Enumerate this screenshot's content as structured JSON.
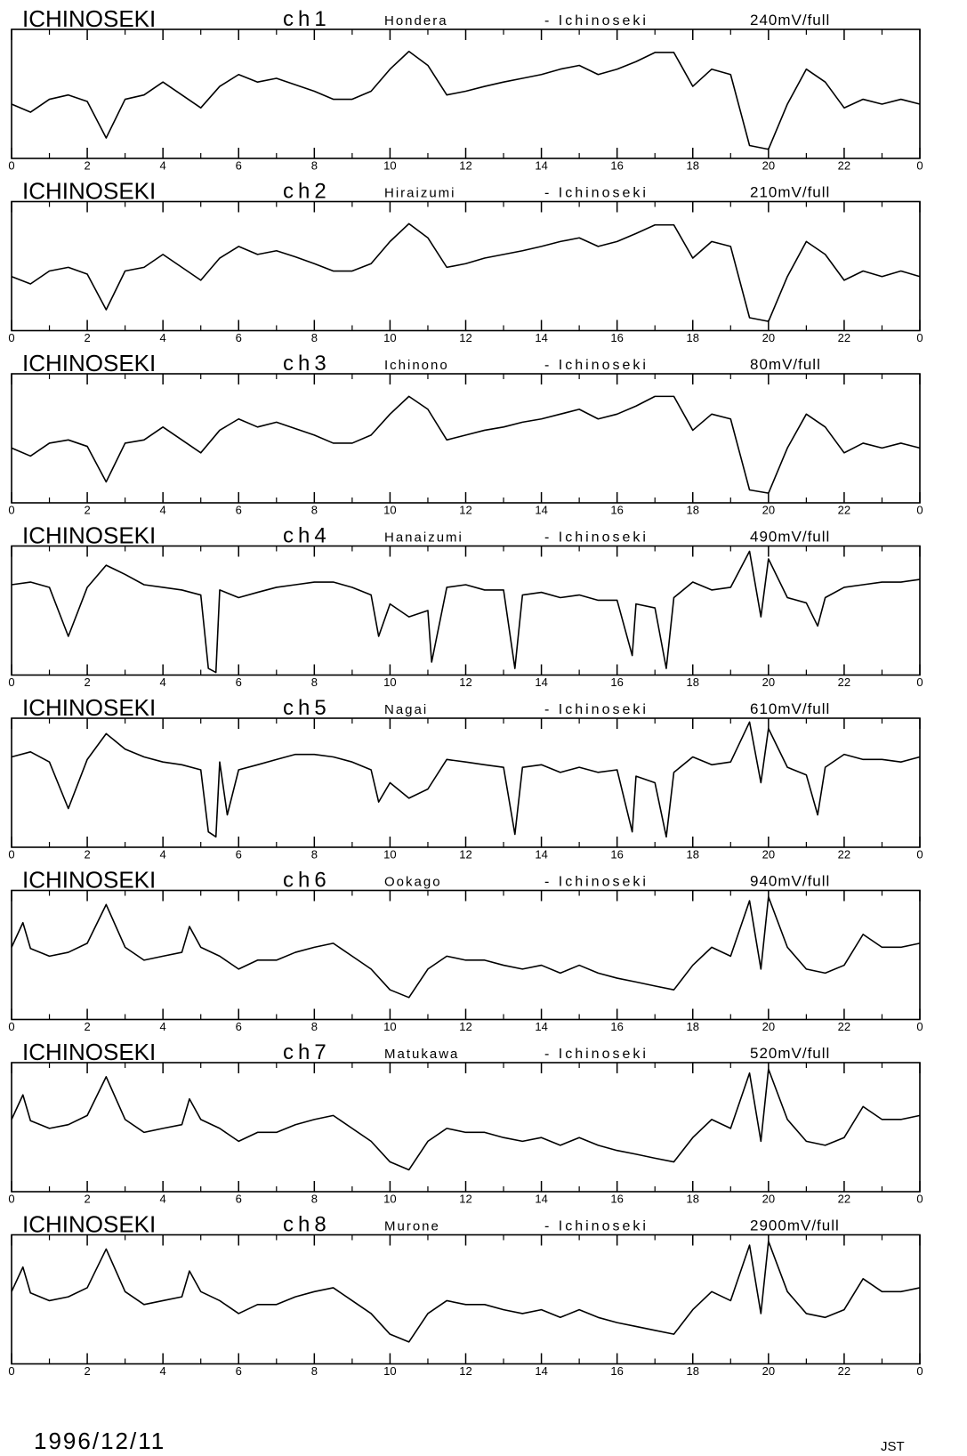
{
  "chart_data": [
    {
      "type": "line",
      "station": "ICHINOSEKI",
      "channel": "ch1",
      "site": "Hondera",
      "reference": "- Ichinoseki",
      "scale": "240mV/full",
      "color": "#000000",
      "xlim": [
        0,
        24
      ],
      "xticks": [
        0,
        2,
        4,
        6,
        8,
        10,
        12,
        14,
        16,
        18,
        20,
        22,
        {
          "value": 24,
          "label": "0"
        }
      ],
      "xminorticks": [
        1,
        3,
        5,
        7,
        9,
        11,
        13,
        15,
        17,
        19,
        21,
        23
      ],
      "ylim": [
        0,
        240
      ],
      "x": [
        0,
        0.5,
        1,
        1.5,
        2,
        2.5,
        3,
        3.5,
        4,
        4.5,
        5,
        5.5,
        6,
        6.5,
        7,
        7.5,
        8,
        8.5,
        9,
        9.5,
        10,
        10.5,
        11,
        11.5,
        12,
        12.5,
        13,
        13.5,
        14,
        14.5,
        15,
        15.5,
        16,
        16.5,
        17,
        17.5,
        18,
        18.5,
        19,
        19.5,
        20,
        20.5,
        21,
        21.5,
        22,
        22.5,
        23,
        23.5,
        24
      ],
      "values": [
        101,
        86,
        110,
        118,
        106,
        38,
        110,
        118,
        142,
        118,
        94,
        134,
        156,
        142,
        149,
        137,
        125,
        110,
        110,
        125,
        166,
        199,
        173,
        118,
        125,
        134,
        142,
        149,
        156,
        166,
        173,
        156,
        166,
        180,
        197,
        197,
        134,
        166,
        156,
        24,
        17,
        101,
        166,
        142,
        94,
        110,
        101,
        110,
        101
      ]
    },
    {
      "type": "line",
      "station": "ICHINOSEKI",
      "channel": "ch2",
      "site": "Hiraizumi",
      "reference": "- Ichinoseki",
      "scale": "210mV/full",
      "color": "#000000",
      "xlim": [
        0,
        24
      ],
      "xticks": [
        0,
        2,
        4,
        6,
        8,
        10,
        12,
        14,
        16,
        18,
        20,
        22,
        {
          "value": 24,
          "label": "0"
        }
      ],
      "xminorticks": [
        1,
        3,
        5,
        7,
        9,
        11,
        13,
        15,
        17,
        19,
        21,
        23
      ],
      "ylim": [
        0,
        210
      ],
      "x": [
        0,
        0.5,
        1,
        1.5,
        2,
        2.5,
        3,
        3.5,
        4,
        4.5,
        5,
        5.5,
        6,
        6.5,
        7,
        7.5,
        8,
        8.5,
        9,
        9.5,
        10,
        10.5,
        11,
        11.5,
        12,
        12.5,
        13,
        13.5,
        14,
        14.5,
        15,
        15.5,
        16,
        16.5,
        17,
        17.5,
        18,
        18.5,
        19,
        19.5,
        20,
        20.5,
        21,
        21.5,
        22,
        22.5,
        23,
        23.5,
        24
      ],
      "values": [
        88,
        76,
        97,
        103,
        92,
        34,
        97,
        103,
        124,
        103,
        82,
        118,
        137,
        124,
        130,
        120,
        109,
        97,
        97,
        109,
        145,
        174,
        151,
        103,
        109,
        118,
        124,
        130,
        137,
        145,
        151,
        137,
        145,
        158,
        172,
        172,
        118,
        145,
        137,
        21,
        15,
        88,
        145,
        124,
        82,
        97,
        88,
        97,
        88
      ]
    },
    {
      "type": "line",
      "station": "ICHINOSEKI",
      "channel": "ch3",
      "site": "Ichinono",
      "reference": "- Ichinoseki",
      "scale": "80mV/full",
      "color": "#000000",
      "xlim": [
        0,
        24
      ],
      "xticks": [
        0,
        2,
        4,
        6,
        8,
        10,
        12,
        14,
        16,
        18,
        20,
        22,
        {
          "value": 24,
          "label": "0"
        }
      ],
      "xminorticks": [
        1,
        3,
        5,
        7,
        9,
        11,
        13,
        15,
        17,
        19,
        21,
        23
      ],
      "ylim": [
        0,
        80
      ],
      "x": [
        0,
        0.5,
        1,
        1.5,
        2,
        2.5,
        3,
        3.5,
        4,
        4.5,
        5,
        5.5,
        6,
        6.5,
        7,
        7.5,
        8,
        8.5,
        9,
        9.5,
        10,
        10.5,
        11,
        11.5,
        12,
        12.5,
        13,
        13.5,
        14,
        14.5,
        15,
        15.5,
        16,
        16.5,
        17,
        17.5,
        18,
        18.5,
        19,
        19.5,
        20,
        20.5,
        21,
        21.5,
        22,
        22.5,
        23,
        23.5,
        24
      ],
      "values": [
        34,
        29,
        37,
        39,
        35,
        13,
        37,
        39,
        47,
        39,
        31,
        45,
        52,
        47,
        50,
        46,
        42,
        37,
        37,
        42,
        55,
        66,
        58,
        39,
        42,
        45,
        47,
        50,
        52,
        55,
        58,
        52,
        55,
        60,
        66,
        66,
        45,
        55,
        52,
        8,
        6,
        34,
        55,
        47,
        31,
        37,
        34,
        37,
        34
      ]
    },
    {
      "type": "line",
      "station": "ICHINOSEKI",
      "channel": "ch4",
      "site": "Hanaizumi",
      "reference": "- Ichinoseki",
      "scale": "490mV/full",
      "color": "#000000",
      "xlim": [
        0,
        24
      ],
      "xticks": [
        0,
        2,
        4,
        6,
        8,
        10,
        12,
        14,
        16,
        18,
        20,
        22,
        {
          "value": 24,
          "label": "0"
        }
      ],
      "xminorticks": [
        1,
        3,
        5,
        7,
        9,
        11,
        13,
        15,
        17,
        19,
        21,
        23
      ],
      "ylim": [
        0,
        490
      ],
      "x": [
        0,
        0.5,
        1,
        1.5,
        2,
        2.5,
        3,
        3.5,
        4,
        4.5,
        5,
        5.2,
        5.4,
        5.5,
        6,
        6.5,
        7,
        7.5,
        8,
        8.5,
        9,
        9.5,
        9.7,
        10,
        10.5,
        11,
        11.1,
        11.5,
        12,
        12.5,
        13,
        13.3,
        13.5,
        14,
        14.5,
        15,
        15.5,
        16,
        16.4,
        16.5,
        17,
        17.3,
        17.5,
        18,
        18.5,
        19,
        19.5,
        19.8,
        20,
        20.5,
        21,
        21.3,
        21.5,
        22,
        22.5,
        23,
        23.5,
        24
      ],
      "values": [
        343,
        353,
        333,
        147,
        333,
        417,
        382,
        343,
        333,
        323,
        304,
        25,
        10,
        323,
        294,
        314,
        333,
        343,
        353,
        353,
        333,
        304,
        147,
        270,
        221,
        245,
        49,
        333,
        343,
        323,
        323,
        25,
        304,
        314,
        294,
        304,
        284,
        284,
        74,
        270,
        255,
        25,
        294,
        353,
        323,
        333,
        470,
        221,
        441,
        294,
        274,
        186,
        294,
        333,
        343,
        353,
        353,
        363
      ]
    },
    {
      "type": "line",
      "station": "ICHINOSEKI",
      "channel": "ch5",
      "site": "Nagai",
      "reference": "- Ichinoseki",
      "scale": "610mV/full",
      "color": "#000000",
      "xlim": [
        0,
        24
      ],
      "xticks": [
        0,
        2,
        4,
        6,
        8,
        10,
        12,
        14,
        16,
        18,
        20,
        22,
        {
          "value": 24,
          "label": "0"
        }
      ],
      "xminorticks": [
        1,
        3,
        5,
        7,
        9,
        11,
        13,
        15,
        17,
        19,
        21,
        23
      ],
      "ylim": [
        0,
        610
      ],
      "x": [
        0,
        0.5,
        1,
        1.5,
        2,
        2.5,
        3,
        3.5,
        4,
        4.5,
        5,
        5.2,
        5.4,
        5.5,
        5.7,
        6,
        6.5,
        7,
        7.5,
        8,
        8.5,
        9,
        9.5,
        9.7,
        10,
        10.5,
        11,
        11.5,
        12,
        12.5,
        13,
        13.3,
        13.5,
        14,
        14.5,
        15,
        15.5,
        16,
        16.4,
        16.5,
        17,
        17.3,
        17.5,
        18,
        18.5,
        19,
        19.5,
        19.8,
        20,
        20.5,
        21,
        21.3,
        21.5,
        22,
        22.5,
        23,
        23.5,
        24
      ],
      "values": [
        427,
        451,
        403,
        183,
        415,
        537,
        464,
        427,
        403,
        390,
        366,
        73,
        49,
        403,
        153,
        366,
        390,
        415,
        439,
        439,
        427,
        403,
        366,
        214,
        305,
        232,
        275,
        415,
        403,
        390,
        378,
        61,
        378,
        390,
        354,
        378,
        354,
        366,
        73,
        336,
        305,
        49,
        354,
        427,
        390,
        403,
        592,
        305,
        561,
        378,
        342,
        153,
        378,
        439,
        415,
        415,
        403,
        427
      ]
    },
    {
      "type": "line",
      "station": "ICHINOSEKI",
      "channel": "ch6",
      "site": "Ookago",
      "reference": "- Ichinoseki",
      "scale": "940mV/full",
      "color": "#000000",
      "xlim": [
        0,
        24
      ],
      "xticks": [
        0,
        2,
        4,
        6,
        8,
        10,
        12,
        14,
        16,
        18,
        20,
        22,
        {
          "value": 24,
          "label": "0"
        }
      ],
      "xminorticks": [
        1,
        3,
        5,
        7,
        9,
        11,
        13,
        15,
        17,
        19,
        21,
        23
      ],
      "ylim": [
        0,
        940
      ],
      "x": [
        0,
        0.3,
        0.5,
        1,
        1.5,
        2,
        2.5,
        3,
        3.5,
        4,
        4.5,
        4.7,
        5,
        5.5,
        6,
        6.5,
        7,
        7.5,
        8,
        8.5,
        9,
        9.5,
        10,
        10.5,
        11,
        11.5,
        12,
        12.5,
        13,
        13.5,
        14,
        14.5,
        15,
        15.5,
        16,
        16.5,
        17,
        17.5,
        18,
        18.5,
        19,
        19.5,
        19.8,
        20,
        20.5,
        21,
        21.5,
        22,
        22.5,
        23,
        23.5,
        24
      ],
      "values": [
        526,
        705,
        517,
        461,
        489,
        555,
        837,
        526,
        432,
        461,
        489,
        677,
        526,
        461,
        367,
        432,
        432,
        489,
        526,
        555,
        461,
        367,
        216,
        160,
        367,
        461,
        432,
        432,
        395,
        367,
        395,
        338,
        395,
        338,
        301,
        273,
        244,
        216,
        395,
        526,
        461,
        865,
        367,
        893,
        526,
        367,
        338,
        395,
        620,
        526,
        526,
        555
      ]
    },
    {
      "type": "line",
      "station": "ICHINOSEKI",
      "channel": "ch7",
      "site": "Matukawa",
      "reference": "- Ichinoseki",
      "scale": "520mV/full",
      "color": "#000000",
      "xlim": [
        0,
        24
      ],
      "xticks": [
        0,
        2,
        4,
        6,
        8,
        10,
        12,
        14,
        16,
        18,
        20,
        22,
        {
          "value": 24,
          "label": "0"
        }
      ],
      "xminorticks": [
        1,
        3,
        5,
        7,
        9,
        11,
        13,
        15,
        17,
        19,
        21,
        23
      ],
      "ylim": [
        0,
        520
      ],
      "x": [
        0,
        0.3,
        0.5,
        1,
        1.5,
        2,
        2.5,
        3,
        3.5,
        4,
        4.5,
        4.7,
        5,
        5.5,
        6,
        6.5,
        7,
        7.5,
        8,
        8.5,
        9,
        9.5,
        10,
        10.5,
        11,
        11.5,
        12,
        12.5,
        13,
        13.5,
        14,
        14.5,
        15,
        15.5,
        16,
        16.5,
        17,
        17.5,
        18,
        18.5,
        19,
        19.5,
        19.8,
        20,
        20.5,
        21,
        21.5,
        22,
        22.5,
        23,
        23.5,
        24
      ],
      "values": [
        291,
        390,
        286,
        255,
        270,
        307,
        463,
        291,
        239,
        255,
        270,
        374,
        291,
        255,
        203,
        239,
        239,
        270,
        291,
        307,
        255,
        203,
        120,
        88,
        203,
        255,
        239,
        239,
        218,
        203,
        218,
        187,
        218,
        187,
        166,
        151,
        135,
        120,
        218,
        291,
        255,
        478,
        203,
        494,
        291,
        203,
        187,
        218,
        343,
        291,
        291,
        307
      ]
    },
    {
      "type": "line",
      "station": "ICHINOSEKI",
      "channel": "ch8",
      "site": "Murone",
      "reference": "- Ichinoseki",
      "scale": "2900mV/full",
      "color": "#000000",
      "xlim": [
        0,
        24
      ],
      "xticks": [
        0,
        2,
        4,
        6,
        8,
        10,
        12,
        14,
        16,
        18,
        20,
        22,
        {
          "value": 24,
          "label": "0"
        }
      ],
      "xminorticks": [
        1,
        3,
        5,
        7,
        9,
        11,
        13,
        15,
        17,
        19,
        21,
        23
      ],
      "ylim": [
        0,
        2900
      ],
      "x": [
        0,
        0.3,
        0.5,
        1,
        1.5,
        2,
        2.5,
        3,
        3.5,
        4,
        4.5,
        4.7,
        5,
        5.5,
        6,
        6.5,
        7,
        7.5,
        8,
        8.5,
        9,
        9.5,
        10,
        10.5,
        11,
        11.5,
        12,
        12.5,
        13,
        13.5,
        14,
        14.5,
        15,
        15.5,
        16,
        16.5,
        17,
        17.5,
        18,
        18.5,
        19,
        19.5,
        19.8,
        20,
        20.5,
        21,
        21.5,
        22,
        22.5,
        23,
        23.5,
        24
      ],
      "values": [
        1624,
        2175,
        1595,
        1421,
        1508,
        1711,
        2581,
        1624,
        1334,
        1421,
        1508,
        2088,
        1624,
        1421,
        1131,
        1334,
        1334,
        1508,
        1624,
        1711,
        1421,
        1131,
        667,
        493,
        1131,
        1421,
        1334,
        1334,
        1218,
        1131,
        1218,
        1044,
        1218,
        1044,
        928,
        841,
        754,
        667,
        1218,
        1624,
        1421,
        2668,
        1131,
        2755,
        1624,
        1131,
        1044,
        1218,
        1914,
        1624,
        1624,
        1711
      ]
    }
  ],
  "footer": {
    "date": "1996/12/11",
    "timezone": "JST"
  }
}
